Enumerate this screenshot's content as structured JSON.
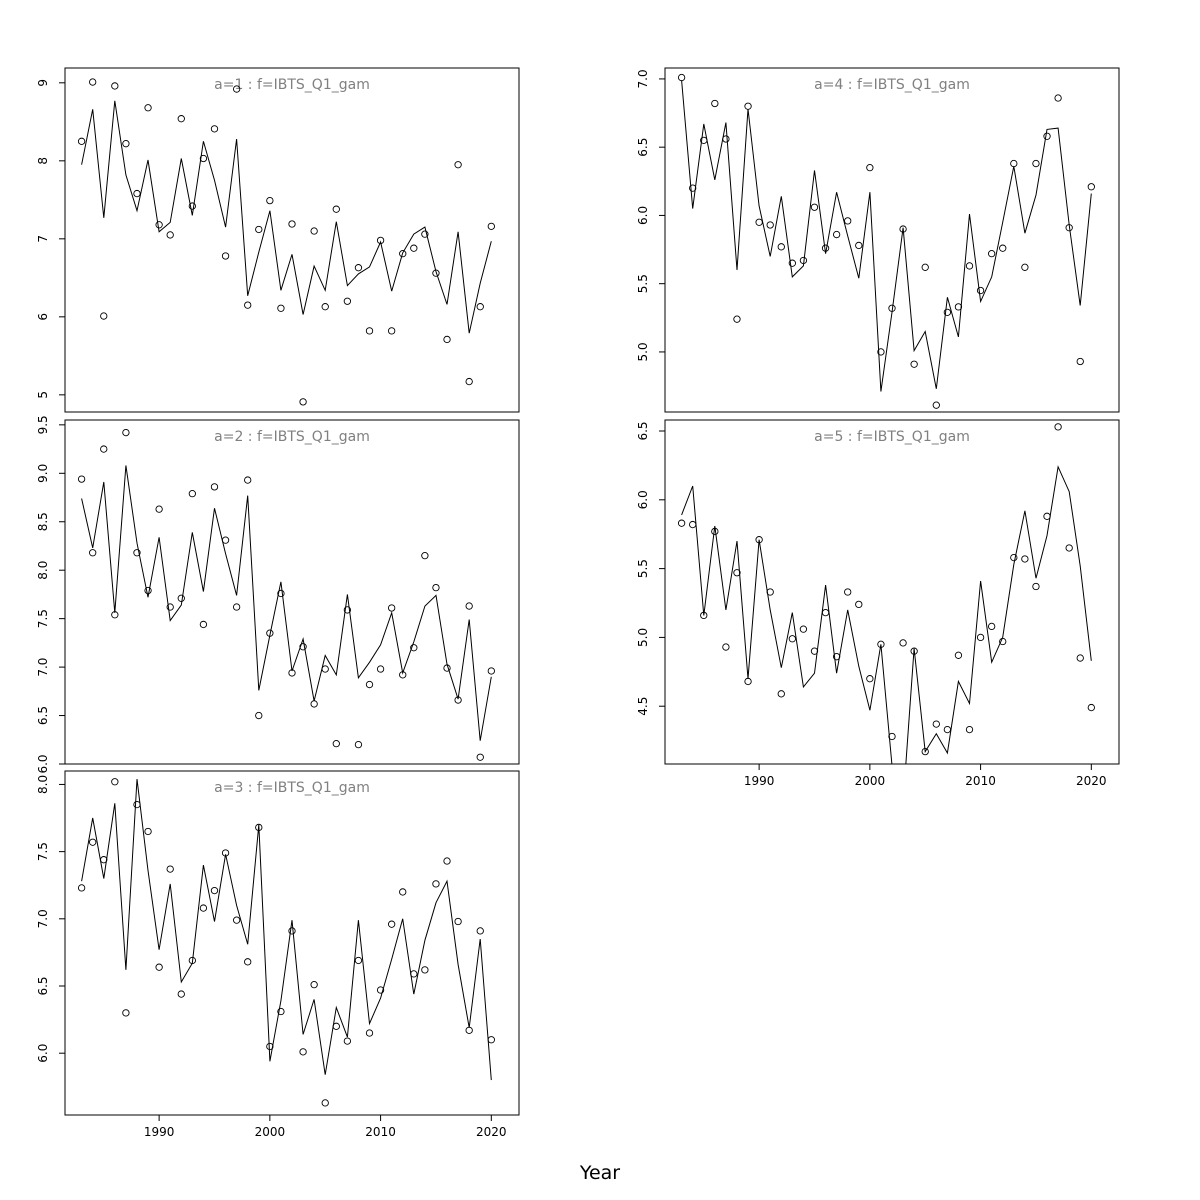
{
  "figure": {
    "xlabel": "Year"
  },
  "chart_data": [
    {
      "type": "line",
      "title": "a=1  :  f=IBTS_Q1_gam",
      "xlim": [
        1981.5,
        2022.5
      ],
      "ylim": [
        4.78,
        9.19
      ],
      "yticks": [
        5,
        6,
        7,
        8,
        9
      ],
      "yticklabels": [
        "5",
        "6",
        "7",
        "8",
        "9"
      ],
      "x": [
        1983,
        1984,
        1985,
        1986,
        1987,
        1988,
        1989,
        1990,
        1991,
        1992,
        1993,
        1994,
        1995,
        1996,
        1997,
        1998,
        1999,
        2000,
        2001,
        2002,
        2003,
        2004,
        2005,
        2006,
        2007,
        2008,
        2009,
        2010,
        2011,
        2012,
        2013,
        2014,
        2015,
        2016,
        2017,
        2018,
        2019,
        2020
      ],
      "series": [
        {
          "style": "points",
          "values": [
            8.25,
            9.01,
            6.01,
            8.96,
            8.22,
            7.58,
            8.68,
            7.18,
            7.05,
            8.54,
            7.42,
            8.03,
            8.41,
            6.78,
            8.92,
            6.15,
            7.12,
            7.49,
            6.11,
            7.19,
            4.91,
            7.1,
            6.13,
            7.38,
            6.2,
            6.63,
            5.82,
            6.98,
            5.82,
            6.81,
            6.88,
            7.06,
            6.56,
            5.71,
            7.95,
            5.17,
            6.13,
            7.16
          ]
        },
        {
          "style": "line",
          "values": [
            7.95,
            8.66,
            7.27,
            8.77,
            7.82,
            7.36,
            8.01,
            7.09,
            7.21,
            8.03,
            7.3,
            8.25,
            7.75,
            7.15,
            8.28,
            6.27,
            6.83,
            7.36,
            6.34,
            6.8,
            6.03,
            6.65,
            6.34,
            7.22,
            6.4,
            6.55,
            6.64,
            6.96,
            6.33,
            6.82,
            7.06,
            7.15,
            6.58,
            6.16,
            7.09,
            5.79,
            6.43,
            6.97
          ]
        }
      ]
    },
    {
      "type": "line",
      "title": "a=2  :  f=IBTS_Q1_gam",
      "xlim": [
        1981.5,
        2022.5
      ],
      "ylim": [
        6.0,
        9.55
      ],
      "yticks": [
        6.0,
        6.5,
        7.0,
        7.5,
        8.0,
        8.5,
        9.0,
        9.5
      ],
      "yticklabels": [
        "6.0",
        "6.5",
        "7.0",
        "7.5",
        "8.0",
        "8.5",
        "9.0",
        "9.5"
      ],
      "x": [
        1983,
        1984,
        1985,
        1986,
        1987,
        1988,
        1989,
        1990,
        1991,
        1992,
        1993,
        1994,
        1995,
        1996,
        1997,
        1998,
        1999,
        2000,
        2001,
        2002,
        2003,
        2004,
        2005,
        2006,
        2007,
        2008,
        2009,
        2010,
        2011,
        2012,
        2013,
        2014,
        2015,
        2016,
        2017,
        2018,
        2019,
        2020
      ],
      "series": [
        {
          "style": "points",
          "values": [
            8.94,
            8.18,
            9.25,
            7.54,
            9.42,
            8.18,
            7.79,
            8.63,
            7.62,
            7.71,
            8.79,
            7.44,
            8.86,
            8.31,
            7.62,
            8.93,
            6.5,
            7.35,
            7.76,
            6.94,
            7.21,
            6.62,
            6.98,
            6.21,
            7.59,
            6.2,
            6.82,
            6.98,
            7.61,
            6.92,
            7.2,
            8.15,
            7.82,
            6.99,
            6.66,
            7.63,
            6.07,
            6.96
          ]
        },
        {
          "style": "line",
          "values": [
            8.74,
            8.23,
            8.91,
            7.56,
            9.08,
            8.28,
            7.72,
            8.34,
            7.48,
            7.64,
            8.39,
            7.78,
            8.64,
            8.17,
            7.74,
            8.77,
            6.76,
            7.33,
            7.88,
            6.96,
            7.29,
            6.65,
            7.12,
            6.92,
            7.75,
            6.89,
            7.05,
            7.23,
            7.56,
            6.94,
            7.26,
            7.63,
            7.74,
            7.03,
            6.67,
            7.49,
            6.24,
            6.9
          ]
        }
      ]
    },
    {
      "type": "line",
      "title": "a=3  :  f=IBTS_Q1_gam",
      "xlim": [
        1981.5,
        2022.5
      ],
      "ylim": [
        5.54,
        8.1
      ],
      "yticks": [
        6.0,
        6.5,
        7.0,
        7.5,
        8.0
      ],
      "yticklabels": [
        "6.0",
        "6.5",
        "7.0",
        "7.5",
        "8.0"
      ],
      "x": [
        1983,
        1984,
        1985,
        1986,
        1987,
        1988,
        1989,
        1990,
        1991,
        1992,
        1993,
        1994,
        1995,
        1996,
        1997,
        1998,
        1999,
        2000,
        2001,
        2002,
        2003,
        2004,
        2005,
        2006,
        2007,
        2008,
        2009,
        2010,
        2011,
        2012,
        2013,
        2014,
        2015,
        2016,
        2017,
        2018,
        2019,
        2020
      ],
      "series": [
        {
          "style": "points",
          "values": [
            7.23,
            7.57,
            7.44,
            8.02,
            6.3,
            7.85,
            7.65,
            6.64,
            7.37,
            6.44,
            6.69,
            7.08,
            7.21,
            7.49,
            6.99,
            6.68,
            7.68,
            6.05,
            6.31,
            6.91,
            6.01,
            6.51,
            5.63,
            6.2,
            6.09,
            6.69,
            6.15,
            6.47,
            6.96,
            7.2,
            6.59,
            6.62,
            7.26,
            7.43,
            6.98,
            6.17,
            6.91,
            6.1
          ]
        },
        {
          "style": "line",
          "values": [
            7.28,
            7.75,
            7.3,
            7.86,
            6.62,
            8.04,
            7.36,
            6.77,
            7.26,
            6.53,
            6.67,
            7.4,
            6.98,
            7.48,
            7.1,
            6.81,
            7.7,
            5.94,
            6.39,
            6.99,
            6.14,
            6.4,
            5.84,
            6.34,
            6.12,
            6.99,
            6.22,
            6.41,
            6.7,
            7.0,
            6.44,
            6.84,
            7.12,
            7.28,
            6.66,
            6.19,
            6.85,
            5.8
          ]
        }
      ]
    },
    {
      "type": "line",
      "title": "a=4  :  f=IBTS_Q1_gam",
      "xlim": [
        1981.5,
        2022.5
      ],
      "ylim": [
        4.56,
        7.08
      ],
      "yticks": [
        5.0,
        5.5,
        6.0,
        6.5,
        7.0
      ],
      "yticklabels": [
        "5.0",
        "5.5",
        "6.0",
        "6.5",
        "7.0"
      ],
      "x": [
        1983,
        1984,
        1985,
        1986,
        1987,
        1988,
        1989,
        1990,
        1991,
        1992,
        1993,
        1994,
        1995,
        1996,
        1997,
        1998,
        1999,
        2000,
        2001,
        2002,
        2003,
        2004,
        2005,
        2006,
        2007,
        2008,
        2009,
        2010,
        2011,
        2012,
        2013,
        2014,
        2015,
        2016,
        2017,
        2018,
        2019,
        2020
      ],
      "series": [
        {
          "style": "points",
          "values": [
            7.01,
            6.2,
            6.55,
            6.82,
            6.56,
            5.24,
            6.8,
            5.95,
            5.93,
            5.77,
            5.65,
            5.67,
            6.06,
            5.76,
            5.86,
            5.96,
            5.78,
            6.35,
            5.0,
            5.32,
            5.9,
            4.91,
            5.62,
            4.61,
            5.29,
            5.33,
            5.63,
            5.45,
            5.72,
            5.76,
            6.38,
            5.62,
            6.38,
            6.58,
            6.86,
            5.91,
            4.93,
            6.21
          ]
        },
        {
          "style": "line",
          "values": [
            6.99,
            6.05,
            6.67,
            6.26,
            6.68,
            5.6,
            6.78,
            6.07,
            5.7,
            6.14,
            5.55,
            5.63,
            6.33,
            5.72,
            6.17,
            5.85,
            5.54,
            6.17,
            4.71,
            5.29,
            5.91,
            5.01,
            5.15,
            4.73,
            5.4,
            5.11,
            6.01,
            5.37,
            5.55,
            5.95,
            6.36,
            5.87,
            6.15,
            6.63,
            6.64,
            5.93,
            5.34,
            6.16
          ]
        }
      ]
    },
    {
      "type": "line",
      "title": "a=5  :  f=IBTS_Q1_gam",
      "xlim": [
        1981.5,
        2022.5
      ],
      "ylim": [
        4.08,
        6.58
      ],
      "yticks": [
        4.5,
        5.0,
        5.5,
        6.0,
        6.5
      ],
      "yticklabels": [
        "4.5",
        "5.0",
        "5.5",
        "6.0",
        "6.5"
      ],
      "x": [
        1983,
        1984,
        1985,
        1986,
        1987,
        1988,
        1989,
        1990,
        1991,
        1992,
        1993,
        1994,
        1995,
        1996,
        1997,
        1998,
        1999,
        2000,
        2001,
        2002,
        2003,
        2004,
        2005,
        2006,
        2007,
        2008,
        2009,
        2010,
        2011,
        2012,
        2013,
        2014,
        2015,
        2016,
        2017,
        2018,
        2019,
        2020
      ],
      "series": [
        {
          "style": "points",
          "values": [
            5.83,
            5.82,
            5.16,
            5.77,
            4.93,
            5.47,
            4.68,
            5.71,
            5.33,
            4.59,
            4.99,
            5.06,
            4.9,
            5.18,
            4.86,
            5.33,
            5.24,
            4.7,
            4.95,
            4.28,
            4.96,
            4.9,
            4.17,
            4.37,
            4.33,
            4.87,
            4.33,
            5.0,
            5.08,
            4.97,
            5.58,
            5.57,
            5.37,
            5.88,
            6.53,
            5.65,
            4.85,
            4.49
          ]
        },
        {
          "style": "line",
          "values": [
            5.89,
            6.1,
            5.16,
            5.81,
            5.2,
            5.7,
            4.7,
            5.71,
            5.2,
            4.78,
            5.18,
            4.64,
            4.74,
            5.38,
            4.74,
            5.2,
            4.79,
            4.47,
            4.95,
            4.07,
            3.8,
            4.92,
            4.17,
            4.3,
            4.16,
            4.68,
            4.52,
            5.41,
            4.82,
            5.0,
            5.53,
            5.92,
            5.43,
            5.74,
            6.24,
            6.06,
            5.52,
            4.83
          ]
        }
      ]
    }
  ],
  "axis": {
    "xticks": [
      1990,
      2000,
      2010,
      2020
    ]
  }
}
